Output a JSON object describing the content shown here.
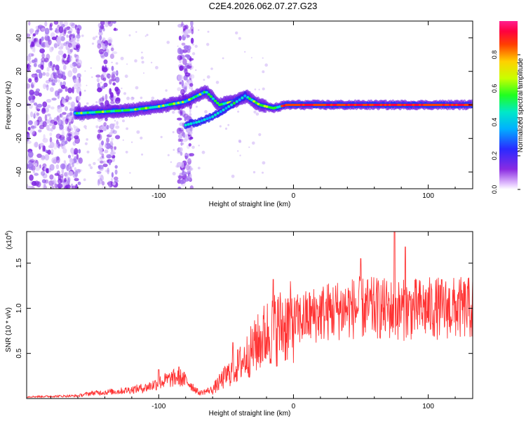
{
  "title": "C2E4.2026.062.07.27.G23",
  "chart_data": [
    {
      "type": "heatmap",
      "xlabel": "Height of straight line (km)",
      "ylabel": "Frequency (Hz)",
      "xlim": [
        -198,
        133
      ],
      "ylim": [
        -50,
        50
      ],
      "xticks": [
        -100,
        0,
        100
      ],
      "yticks": [
        -40,
        -20,
        0,
        20,
        40
      ],
      "colorbar": {
        "label": "Normalized spectral amplitude",
        "range": [
          0,
          1
        ],
        "ticks": [
          "0.0",
          "0.2",
          "0.4",
          "0.6",
          "0.8"
        ],
        "tick_values": [
          0,
          0.2,
          0.4,
          0.6,
          0.8
        ]
      },
      "ridge": {
        "note": "main frequency ridge (center frequency vs height)",
        "x": [
          -160,
          -140,
          -120,
          -100,
          -80,
          -65,
          -55,
          -45,
          -35,
          -25,
          -15,
          -5,
          0,
          20,
          40,
          60,
          80,
          100,
          120,
          133
        ],
        "y": [
          -5,
          -4,
          -3,
          -1,
          2,
          8,
          0,
          2,
          5,
          0,
          -2,
          0,
          0,
          0,
          0,
          0,
          0,
          0,
          0,
          0
        ]
      },
      "branch": {
        "note": "secondary descending branch",
        "x": [
          -80,
          -70,
          -60,
          -50,
          -40,
          -35
        ],
        "y": [
          -12,
          -10,
          -7,
          -2,
          3,
          6
        ]
      },
      "scatter_bands_x": [
        [
          -198,
          -158
        ],
        [
          -145,
          -130
        ],
        [
          -85,
          -75
        ]
      ]
    },
    {
      "type": "line",
      "xlabel": "Height of straight line (km)",
      "ylabel": "SNR (10 * v/v)",
      "multiplier": "(x10",
      "multiplier_exp": "4",
      "multiplier_close": ")",
      "xlim": [
        -198,
        133
      ],
      "ylim": [
        0,
        1.85
      ],
      "xticks": [
        -100,
        0,
        100
      ],
      "yticks": [
        0.5,
        1.0,
        1.5
      ],
      "ytick_labels": [
        "0.5",
        "1.0",
        "1.5"
      ],
      "color": "#ff3333",
      "envelope": {
        "x": [
          -198,
          -160,
          -150,
          -130,
          -110,
          -95,
          -85,
          -78,
          -70,
          -60,
          -50,
          -40,
          -30,
          -20,
          -10,
          0,
          20,
          40,
          60,
          80,
          100,
          120,
          133
        ],
        "y": [
          0.02,
          0.03,
          0.06,
          0.08,
          0.12,
          0.2,
          0.24,
          0.18,
          0.06,
          0.1,
          0.25,
          0.38,
          0.55,
          0.72,
          0.8,
          0.85,
          0.95,
          1.0,
          1.0,
          0.98,
          1.0,
          1.0,
          1.0
        ]
      },
      "peaks": [
        {
          "x": -100,
          "y": 0.32
        },
        {
          "x": -85,
          "y": 0.35
        },
        {
          "x": -45,
          "y": 0.62
        },
        {
          "x": -28,
          "y": 0.82
        },
        {
          "x": -15,
          "y": 1.32
        },
        {
          "x": 50,
          "y": 1.55
        },
        {
          "x": 75,
          "y": 1.85
        },
        {
          "x": 83,
          "y": 1.68
        }
      ]
    }
  ]
}
